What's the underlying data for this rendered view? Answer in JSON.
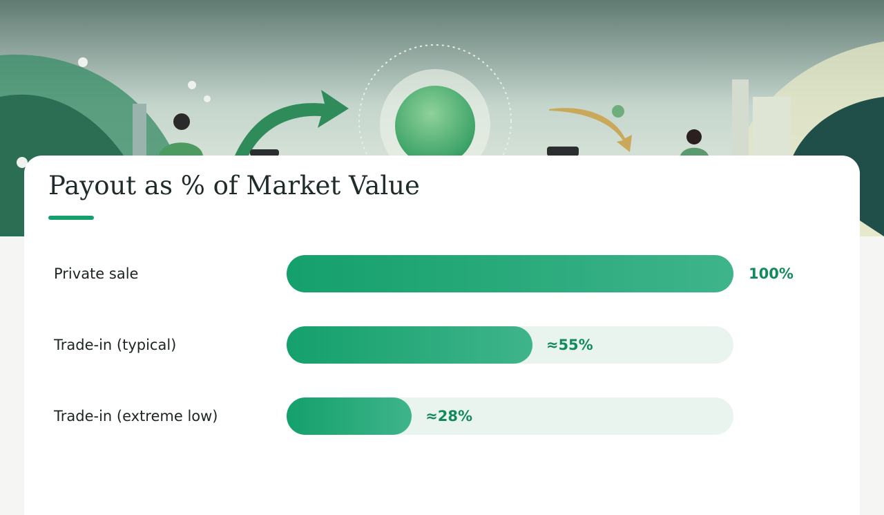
{
  "chart_data": {
    "type": "bar",
    "orientation": "horizontal",
    "title": "Payout as % of Market Value",
    "categories": [
      "Private sale",
      "Trade-in (typical)",
      "Trade-in (extreme low)"
    ],
    "values": [
      100,
      55,
      28
    ],
    "value_labels": [
      "100%",
      "≈55%",
      "≈28%"
    ],
    "xlim": [
      0,
      100
    ],
    "color": "#14a06c"
  }
}
